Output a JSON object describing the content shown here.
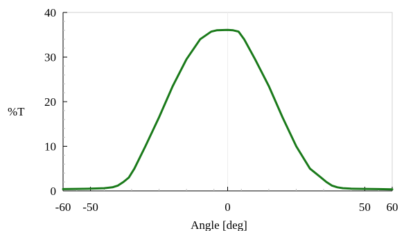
{
  "chart_data": {
    "type": "line",
    "title": "",
    "xlabel": "Angle [deg]",
    "ylabel": "%T",
    "xlim": [
      -60,
      60
    ],
    "ylim": [
      0,
      40
    ],
    "x_ticks": [
      -60,
      -50,
      0,
      50,
      60
    ],
    "x_tick_labels": [
      "-60",
      "-50",
      "0",
      "50",
      "60"
    ],
    "y_ticks": [
      0,
      10,
      20,
      30,
      40
    ],
    "y_tick_labels": [
      "0",
      "10",
      "20",
      "30",
      "40"
    ],
    "grid": "vertical line at x = 0",
    "legend": "none",
    "series": [
      {
        "color": "#1a7a1a",
        "x": [
          -60,
          -55,
          -50,
          -45,
          -42,
          -40,
          -38,
          -36,
          -34,
          -30,
          -25,
          -20,
          -15,
          -10,
          -6,
          -4,
          -2,
          0,
          2,
          4,
          6,
          10,
          15,
          20,
          25,
          30,
          34,
          36,
          38,
          40,
          42,
          45,
          50,
          55,
          60
        ],
        "y": [
          0.4,
          0.45,
          0.5,
          0.6,
          0.8,
          1.2,
          2.0,
          3.0,
          5.0,
          10.0,
          16.5,
          23.5,
          29.5,
          34.0,
          35.7,
          36.0,
          36.05,
          36.1,
          36.0,
          35.7,
          34.0,
          29.5,
          23.5,
          16.5,
          10.0,
          5.0,
          3.0,
          2.0,
          1.2,
          0.8,
          0.6,
          0.5,
          0.45,
          0.4,
          0.35
        ]
      }
    ]
  }
}
